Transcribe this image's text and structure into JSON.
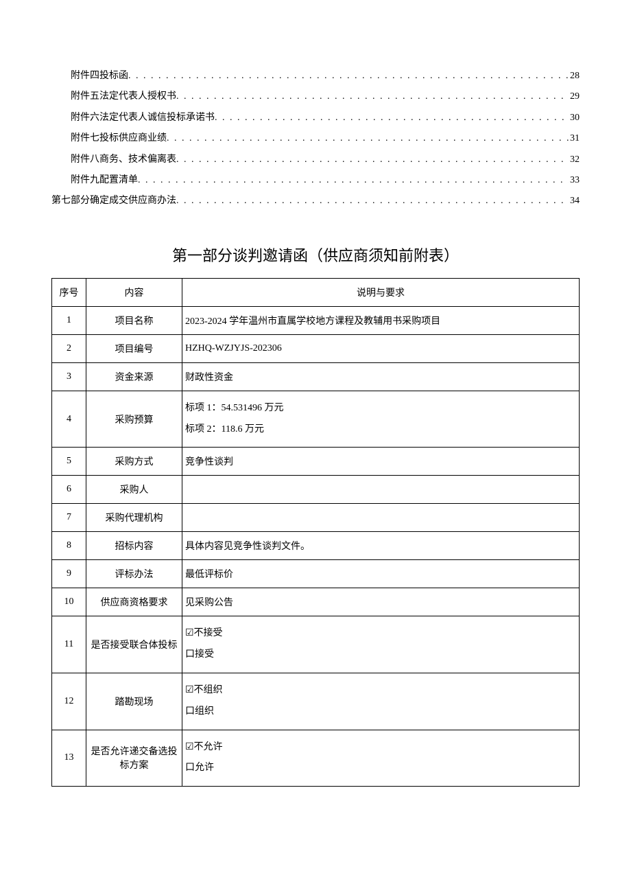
{
  "toc": {
    "items": [
      {
        "label": "附件四投标函",
        "page": "28",
        "indent": true
      },
      {
        "label": "附件五法定代表人授权书",
        "page": "29",
        "indent": true
      },
      {
        "label": "附件六法定代表人诚信投标承诺书",
        "page": "30",
        "indent": true
      },
      {
        "label": "附件七投标供应商业绩",
        "page": "31",
        "indent": true
      },
      {
        "label": "附件八商务、技术偏离表",
        "page": "32",
        "indent": true
      },
      {
        "label": "附件九配置清单",
        "page": "33",
        "indent": true
      },
      {
        "label": "第七部分确定成交供应商办法",
        "page": "34",
        "indent": false
      }
    ]
  },
  "section_title": "第一部分谈判邀请函（供应商须知前附表）",
  "table": {
    "headers": {
      "seq": "序号",
      "content": "内容",
      "desc": "说明与要求"
    },
    "rows": [
      {
        "seq": "1",
        "content": "项目名称",
        "desc": "2023-2024 学年温州市直属学校地方课程及教辅用书采购项目"
      },
      {
        "seq": "2",
        "content": "项目编号",
        "desc": "HZHQ-WZJYJS-202306"
      },
      {
        "seq": "3",
        "content": "资金来源",
        "desc": "财政性资金"
      },
      {
        "seq": "4",
        "content": "采购预算",
        "desc": "标项 1：54.531496 万元\n标项 2：118.6 万元"
      },
      {
        "seq": "5",
        "content": "采购方式",
        "desc": "竞争性谈判"
      },
      {
        "seq": "6",
        "content": "采购人",
        "desc": ""
      },
      {
        "seq": "7",
        "content": "采购代理机构",
        "desc": ""
      },
      {
        "seq": "8",
        "content": "招标内容",
        "desc": "具体内容见竞争性谈判文件。"
      },
      {
        "seq": "9",
        "content": "评标办法",
        "desc": "最低评标价"
      },
      {
        "seq": "10",
        "content": "供应商资格要求",
        "desc": "见采购公告"
      },
      {
        "seq": "11",
        "content": "是否接受联合体投标",
        "desc": "☑不接受\n口接受"
      },
      {
        "seq": "12",
        "content": "踏勘现场",
        "desc": "☑不组织\n口组织"
      },
      {
        "seq": "13",
        "content": "是否允许递交备选投标方案",
        "desc": "☑不允许\n口允许"
      }
    ]
  },
  "colors": {
    "text": "#000000",
    "background": "#ffffff",
    "border": "#000000"
  }
}
